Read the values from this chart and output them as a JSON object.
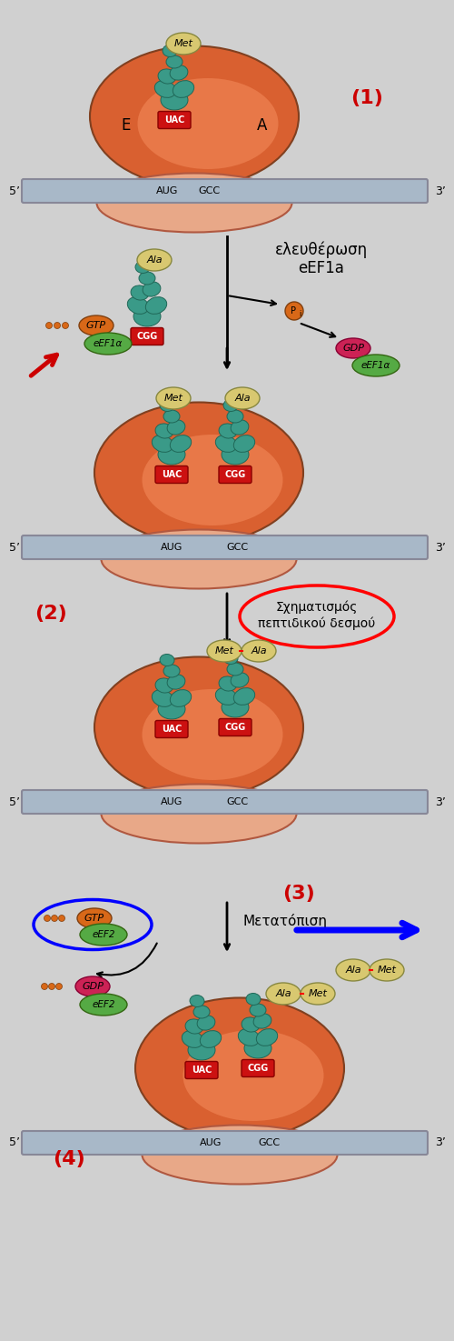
{
  "bg_color": "#d0d0d0",
  "ribosome_large_color": "#d96030",
  "ribosome_large_inner": "#e87848",
  "ribosome_small_color": "#e8a888",
  "mrna_color": "#a8b8c8",
  "mrna_edge": "#888898",
  "uac_color": "#cc1111",
  "cgg_color": "#cc1111",
  "trna_color": "#3a9a88",
  "trna_edge": "#206858",
  "met_color": "#d8c870",
  "ala_color": "#d8c870",
  "gtp_color": "#d86818",
  "gdp_color": "#cc2255",
  "ef1a_color": "#55aa44",
  "ef2_color": "#55aa44",
  "dot_color": "#d86818",
  "red_arrow": "#cc0000",
  "blue_arrow": "#1133cc",
  "black": "#111111",
  "white": "#ffffff",
  "red_label": "#cc0000",
  "step1": "(1)",
  "step2": "(2)",
  "step3": "(3)",
  "step4": "(4)",
  "release_line1": "ελευθέρωση",
  "release_line2": "eEF1a",
  "peptide_line1": "Σχηματισμός",
  "peptide_line2": "πεπτιδικού δεσμού",
  "translocation": "Μετατόπιση",
  "five_prime": "5’",
  "three_prime": "3’",
  "aug": "AUG",
  "gcc": "GCC",
  "Pi": "P",
  "Pi_sub": "i"
}
